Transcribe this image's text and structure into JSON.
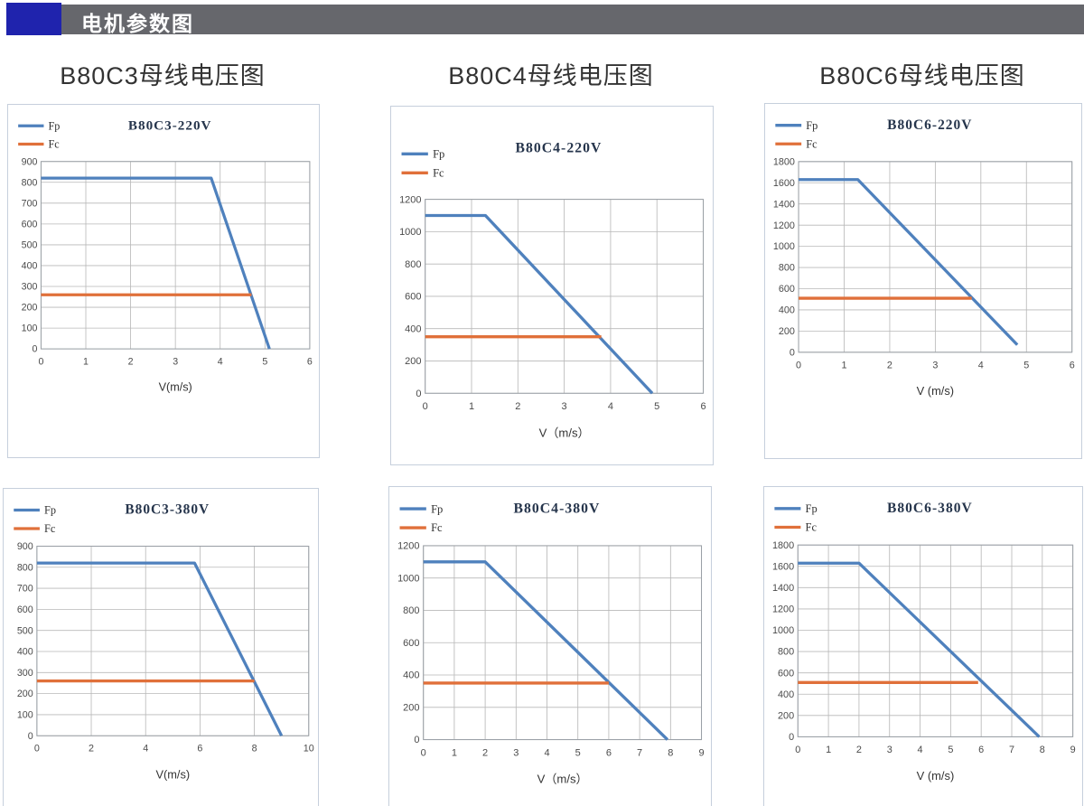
{
  "header": {
    "title": "电机参数图",
    "accent_color": "#1f23ad",
    "bar_color": "#66676c"
  },
  "column_titles": [
    "B80C3母线电压图",
    "B80C4母线电压图",
    "B80C6母线电压图"
  ],
  "palette": {
    "fp_color": "#4f81bd",
    "fc_color": "#e0703a",
    "grid_color": "#b8b8b8",
    "plot_border_color": "#9aa0a6",
    "panel_border_color": "#c6cfdc"
  },
  "chart_data": [
    {
      "type": "line",
      "title": "B80C3-220V",
      "xlabel": "V(m/s)",
      "xlim": [
        0,
        6
      ],
      "xtick_step": 1,
      "ylim": [
        0,
        900
      ],
      "ytick_step": 100,
      "grid": true,
      "legend_position": "top-left",
      "series": [
        {
          "name": "Fp",
          "color": "#4f81bd",
          "points": [
            [
              0,
              820
            ],
            [
              3.8,
              820
            ],
            [
              5.1,
              0
            ]
          ]
        },
        {
          "name": "Fc",
          "color": "#e0703a",
          "points": [
            [
              0,
              260
            ],
            [
              4.7,
              260
            ]
          ]
        }
      ]
    },
    {
      "type": "line",
      "title": "B80C4-220V",
      "xlabel": "V（m/s）",
      "xlim": [
        0,
        6
      ],
      "xtick_step": 1,
      "ylim": [
        0,
        1200
      ],
      "ytick_step": 200,
      "grid": true,
      "legend_position": "top-left",
      "layout": {
        "top": 98,
        "legend_top": 50,
        "title_y": 48
      },
      "series": [
        {
          "name": "Fp",
          "color": "#4f81bd",
          "points": [
            [
              0,
              1100
            ],
            [
              1.3,
              1100
            ],
            [
              4.9,
              0
            ]
          ]
        },
        {
          "name": "Fc",
          "color": "#e0703a",
          "points": [
            [
              0,
              350
            ],
            [
              3.8,
              350
            ]
          ]
        }
      ]
    },
    {
      "type": "line",
      "title": "B80C6-220V",
      "xlabel": "V (m/s)",
      "xlim": [
        0,
        6
      ],
      "xtick_step": 1,
      "ylim": [
        0,
        1800
      ],
      "ytick_step": 200,
      "grid": true,
      "legend_position": "top-left",
      "series": [
        {
          "name": "Fp",
          "color": "#4f81bd",
          "points": [
            [
              0,
              1630
            ],
            [
              1.3,
              1630
            ],
            [
              4.8,
              70
            ]
          ]
        },
        {
          "name": "Fc",
          "color": "#e0703a",
          "points": [
            [
              0,
              510
            ],
            [
              3.8,
              510
            ]
          ]
        }
      ]
    },
    {
      "type": "line",
      "title": "B80C3-380V",
      "xlabel": "V(m/s)",
      "xlim": [
        0,
        10
      ],
      "xtick_step": 2,
      "ylim": [
        0,
        900
      ],
      "ytick_step": 100,
      "grid": true,
      "legend_position": "top-left",
      "series": [
        {
          "name": "Fp",
          "color": "#4f81bd",
          "points": [
            [
              0,
              820
            ],
            [
              5.8,
              820
            ],
            [
              9.0,
              0
            ]
          ]
        },
        {
          "name": "Fc",
          "color": "#e0703a",
          "points": [
            [
              0,
              260
            ],
            [
              8.0,
              260
            ]
          ]
        }
      ]
    },
    {
      "type": "line",
      "title": "B80C4-380V",
      "xlabel": "V（m/s）",
      "xlim": [
        0,
        9
      ],
      "xtick_step": 1,
      "ylim": [
        0,
        1200
      ],
      "ytick_step": 200,
      "grid": true,
      "legend_position": "top-left",
      "series": [
        {
          "name": "Fp",
          "color": "#4f81bd",
          "points": [
            [
              0,
              1100
            ],
            [
              2.0,
              1100
            ],
            [
              7.9,
              0
            ]
          ]
        },
        {
          "name": "Fc",
          "color": "#e0703a",
          "points": [
            [
              0,
              350
            ],
            [
              6.0,
              350
            ]
          ]
        }
      ]
    },
    {
      "type": "line",
      "title": "B80C6-380V",
      "xlabel": "V (m/s)",
      "xlim": [
        0,
        9
      ],
      "xtick_step": 1,
      "ylim": [
        0,
        1800
      ],
      "ytick_step": 200,
      "grid": true,
      "legend_position": "top-left",
      "series": [
        {
          "name": "Fp",
          "color": "#4f81bd",
          "points": [
            [
              0,
              1630
            ],
            [
              2.0,
              1630
            ],
            [
              7.9,
              0
            ]
          ]
        },
        {
          "name": "Fc",
          "color": "#e0703a",
          "points": [
            [
              0,
              510
            ],
            [
              5.9,
              510
            ]
          ]
        }
      ]
    }
  ]
}
